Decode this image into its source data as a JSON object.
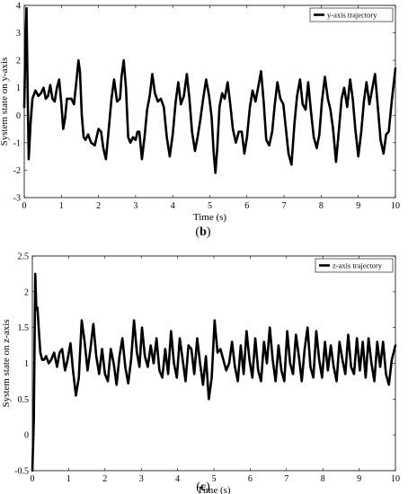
{
  "figure": {
    "panels": [
      {
        "caption_letter": "b",
        "caption_open": "(",
        "caption_close": ")"
      },
      {
        "caption_letter": "c",
        "caption_open": "(",
        "caption_close": ")"
      }
    ]
  },
  "chart_data": [
    {
      "type": "line",
      "title": "",
      "xlabel": "Time (s)",
      "ylabel": "System state on y-axis",
      "xlim": [
        0,
        10
      ],
      "ylim": [
        -3,
        4
      ],
      "xticks": [
        0,
        1,
        2,
        3,
        4,
        5,
        6,
        7,
        8,
        9,
        10
      ],
      "yticks": [
        -3,
        -2,
        -1,
        0,
        1,
        2,
        3,
        4
      ],
      "grid": false,
      "legend_position": "top-right",
      "series_color": "#000000",
      "series": [
        {
          "name": "y-axis trajectory",
          "x": [
            0,
            0.03,
            0.06,
            0.09,
            0.12,
            0.17,
            0.22,
            0.3,
            0.38,
            0.45,
            0.52,
            0.58,
            0.64,
            0.7,
            0.76,
            0.82,
            0.88,
            0.94,
            1.0,
            1.05,
            1.1,
            1.15,
            1.2,
            1.27,
            1.34,
            1.41,
            1.46,
            1.5,
            1.55,
            1.6,
            1.65,
            1.72,
            1.8,
            1.9,
            2.0,
            2.07,
            2.13,
            2.2,
            2.27,
            2.35,
            2.42,
            2.5,
            2.58,
            2.62,
            2.68,
            2.74,
            2.8,
            2.86,
            2.93,
            3.0,
            3.05,
            3.1,
            3.17,
            3.24,
            3.31,
            3.38,
            3.45,
            3.52,
            3.6,
            3.68,
            3.76,
            3.84,
            3.92,
            4.0,
            4.08,
            4.15,
            4.22,
            4.3,
            4.38,
            4.45,
            4.52,
            4.6,
            4.67,
            4.74,
            4.82,
            4.9,
            4.98,
            5.05,
            5.1,
            5.15,
            5.2,
            5.26,
            5.33,
            5.4,
            5.48,
            5.55,
            5.62,
            5.7,
            5.78,
            5.86,
            5.93,
            6.0,
            6.08,
            6.15,
            6.23,
            6.3,
            6.38,
            6.45,
            6.52,
            6.6,
            6.68,
            6.75,
            6.82,
            6.9,
            6.98,
            7.05,
            7.12,
            7.2,
            7.28,
            7.35,
            7.43,
            7.5,
            7.58,
            7.65,
            7.72,
            7.8,
            7.88,
            7.95,
            8.02,
            8.1,
            8.18,
            8.25,
            8.32,
            8.4,
            8.48,
            8.55,
            8.62,
            8.7,
            8.78,
            8.85,
            8.92,
            9.0,
            9.08,
            9.15,
            9.22,
            9.3,
            9.38,
            9.45,
            9.52,
            9.6,
            9.68,
            9.75,
            9.82,
            9.9,
            10.0
          ],
          "y": [
            0.3,
            2.5,
            3.9,
            1.0,
            -1.6,
            -0.3,
            0.6,
            0.9,
            0.7,
            0.8,
            1.0,
            0.6,
            0.7,
            1.1,
            0.6,
            0.5,
            1.0,
            1.3,
            0.4,
            -0.5,
            -0.1,
            0.6,
            0.6,
            0.6,
            0.4,
            1.3,
            2.0,
            1.6,
            0.0,
            -0.8,
            -0.9,
            -0.7,
            -1.0,
            -1.1,
            -0.5,
            -0.6,
            -1.2,
            -1.6,
            -0.6,
            0.6,
            1.3,
            0.5,
            0.6,
            1.4,
            2.0,
            1.0,
            -0.8,
            -1.0,
            -0.8,
            -0.9,
            -0.6,
            -0.6,
            -1.6,
            -0.8,
            0.2,
            0.7,
            1.5,
            0.8,
            0.5,
            0.6,
            0.3,
            -0.8,
            -1.5,
            -0.7,
            0.5,
            1.2,
            0.4,
            0.7,
            1.5,
            0.6,
            -0.6,
            -1.3,
            -0.8,
            -0.2,
            0.6,
            1.3,
            0.7,
            -0.1,
            -1.3,
            -2.1,
            -1.2,
            0.3,
            0.8,
            0.6,
            1.2,
            0.4,
            -0.5,
            -1.0,
            -0.6,
            -0.6,
            -1.4,
            -0.8,
            0.3,
            0.9,
            0.5,
            1.0,
            1.6,
            0.5,
            -0.9,
            -1.1,
            -0.6,
            0.4,
            1.2,
            0.6,
            0.4,
            -0.5,
            -1.4,
            -1.8,
            -0.3,
            0.7,
            1.3,
            0.4,
            0.2,
            1.2,
            0.2,
            -0.8,
            -1.2,
            -0.7,
            0.5,
            1.4,
            0.6,
            0.2,
            -0.5,
            -1.7,
            -0.5,
            0.6,
            1.0,
            0.3,
            1.3,
            0.6,
            -0.5,
            -1.5,
            -0.6,
            0.5,
            1.2,
            0.4,
            1.0,
            1.5,
            0.4,
            -0.9,
            -1.4,
            -0.7,
            -0.6,
            0.5,
            1.7
          ]
        }
      ]
    },
    {
      "type": "line",
      "title": "",
      "xlabel": "Time (s)",
      "ylabel": "System state on z-axis",
      "xlim": [
        0,
        10
      ],
      "ylim": [
        -0.5,
        2.5
      ],
      "xticks": [
        0,
        1,
        2,
        3,
        4,
        5,
        6,
        7,
        8,
        9,
        10
      ],
      "yticks": [
        -0.5,
        0,
        0.5,
        1,
        1.5,
        2,
        2.5
      ],
      "grid": false,
      "legend_position": "top-right",
      "series_color": "#000000",
      "series": [
        {
          "name": "z-axis trajectory",
          "x": [
            0,
            0.04,
            0.08,
            0.11,
            0.14,
            0.18,
            0.22,
            0.27,
            0.32,
            0.38,
            0.45,
            0.52,
            0.6,
            0.68,
            0.75,
            0.82,
            0.9,
            0.97,
            1.05,
            1.12,
            1.2,
            1.28,
            1.36,
            1.44,
            1.52,
            1.6,
            1.68,
            1.76,
            1.84,
            1.92,
            2.0,
            2.08,
            2.16,
            2.24,
            2.32,
            2.4,
            2.48,
            2.56,
            2.64,
            2.72,
            2.8,
            2.88,
            2.95,
            3.02,
            3.1,
            3.18,
            3.26,
            3.34,
            3.42,
            3.5,
            3.58,
            3.66,
            3.74,
            3.82,
            3.9,
            3.98,
            4.06,
            4.14,
            4.22,
            4.3,
            4.38,
            4.46,
            4.54,
            4.62,
            4.7,
            4.78,
            4.86,
            4.94,
            5.02,
            5.1,
            5.18,
            5.26,
            5.34,
            5.42,
            5.5,
            5.58,
            5.66,
            5.74,
            5.82,
            5.9,
            5.98,
            6.06,
            6.14,
            6.22,
            6.3,
            6.38,
            6.46,
            6.54,
            6.62,
            6.7,
            6.78,
            6.86,
            6.94,
            7.02,
            7.1,
            7.18,
            7.26,
            7.34,
            7.42,
            7.5,
            7.58,
            7.66,
            7.74,
            7.82,
            7.9,
            7.98,
            8.06,
            8.14,
            8.22,
            8.3,
            8.38,
            8.46,
            8.54,
            8.62,
            8.7,
            8.78,
            8.86,
            8.94,
            9.02,
            9.1,
            9.18,
            9.26,
            9.34,
            9.42,
            9.5,
            9.58,
            9.66,
            9.74,
            9.82,
            9.9,
            10.0
          ],
          "y": [
            -0.5,
            0.2,
            2.25,
            1.75,
            1.78,
            1.45,
            1.15,
            1.05,
            1.05,
            1.1,
            1.0,
            1.05,
            1.15,
            0.95,
            1.15,
            1.2,
            0.9,
            1.05,
            1.28,
            0.9,
            0.55,
            0.8,
            1.6,
            1.3,
            0.9,
            1.2,
            1.55,
            1.1,
            0.85,
            1.2,
            0.85,
            0.75,
            1.2,
            1.0,
            0.7,
            1.1,
            1.35,
            0.95,
            0.72,
            1.05,
            1.6,
            1.15,
            0.95,
            1.5,
            1.1,
            0.95,
            1.25,
            1.0,
            1.35,
            0.9,
            0.8,
            1.2,
            0.85,
            1.45,
            1.0,
            0.8,
            1.35,
            1.05,
            0.75,
            1.25,
            1.2,
            0.85,
            1.35,
            1.0,
            0.7,
            1.1,
            0.5,
            0.8,
            1.6,
            1.15,
            1.2,
            1.05,
            0.9,
            1.0,
            1.3,
            0.95,
            0.75,
            1.25,
            0.85,
            1.45,
            1.05,
            0.8,
            1.35,
            0.9,
            0.75,
            1.3,
            1.0,
            1.5,
            1.05,
            0.75,
            1.25,
            0.9,
            0.75,
            1.45,
            1.0,
            0.85,
            1.4,
            1.1,
            0.75,
            1.2,
            1.5,
            0.95,
            0.8,
            1.45,
            1.05,
            0.8,
            1.3,
            0.9,
            1.25,
            0.95,
            0.75,
            1.3,
            1.05,
            0.85,
            1.4,
            0.95,
            0.85,
            1.35,
            0.9,
            1.3,
            0.8,
            1.35,
            1.0,
            0.75,
            1.3,
            0.95,
            1.3,
            0.85,
            0.7,
            1.05,
            1.25
          ]
        }
      ]
    }
  ]
}
